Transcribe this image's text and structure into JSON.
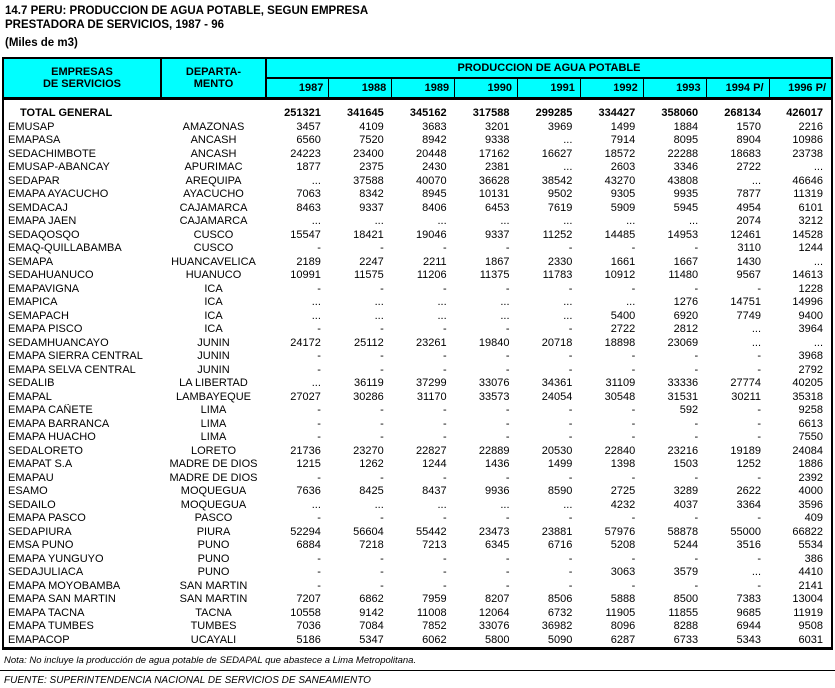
{
  "title": {
    "line1": "14.7 PERU: PRODUCCION DE AGUA POTABLE, SEGUN EMPRESA",
    "line2": "PRESTADORA DE SERVICIOS, 1987 - 96",
    "units": "(Miles de m3)"
  },
  "colors": {
    "header_bg": "#00FFFF",
    "text": "#000000"
  },
  "table": {
    "col_company_line1": "EMPRESAS",
    "col_company_line2": "DE SERVICIOS",
    "col_department_line1": "DEPARTA-",
    "col_department_line2": "MENTO",
    "group_header": "PRODUCCION DE AGUA POTABLE",
    "years": [
      "1987",
      "1988",
      "1989",
      "1990",
      "1991",
      "1992",
      "1993",
      "1994 P/",
      "1996 P/"
    ],
    "total_row": {
      "name": "TOTAL GENERAL",
      "dept": "",
      "values": [
        "251321",
        "341645",
        "345162",
        "317588",
        "299285",
        "334427",
        "358060",
        "268134",
        "426017"
      ]
    },
    "rows": [
      {
        "name": "EMUSAP",
        "dept": "AMAZONAS",
        "values": [
          "3457",
          "4109",
          "3683",
          "3201",
          "3969",
          "1499",
          "1884",
          "1570",
          "2216"
        ]
      },
      {
        "name": "EMAPASA",
        "dept": "ANCASH",
        "values": [
          "6560",
          "7520",
          "8942",
          "9338",
          "...",
          "7914",
          "8095",
          "8904",
          "10986"
        ]
      },
      {
        "name": "SEDACHIMBOTE",
        "dept": "ANCASH",
        "values": [
          "24223",
          "23400",
          "20448",
          "17162",
          "16627",
          "18572",
          "22288",
          "18683",
          "23738"
        ]
      },
      {
        "name": "EMUSAP-ABANCAY",
        "dept": "APURIMAC",
        "values": [
          "1877",
          "2375",
          "2430",
          "2381",
          "...",
          "2603",
          "3346",
          "2722",
          "..."
        ]
      },
      {
        "name": "SEDAPAR",
        "dept": "AREQUIPA",
        "values": [
          "...",
          "37588",
          "40070",
          "36628",
          "38542",
          "43270",
          "43808",
          "...",
          "46646"
        ]
      },
      {
        "name": "EMAPA AYACUCHO",
        "dept": "AYACUCHO",
        "values": [
          "7063",
          "8342",
          "8945",
          "10131",
          "9502",
          "9305",
          "9935",
          "7877",
          "11319"
        ]
      },
      {
        "name": "SEMDACAJ",
        "dept": "CAJAMARCA",
        "values": [
          "8463",
          "9337",
          "8406",
          "6453",
          "7619",
          "5909",
          "5945",
          "4954",
          "6101"
        ]
      },
      {
        "name": "EMAPA JAEN",
        "dept": "CAJAMARCA",
        "values": [
          "...",
          "...",
          "...",
          "...",
          "...",
          "...",
          "...",
          "2074",
          "3212"
        ]
      },
      {
        "name": "SEDAQOSQO",
        "dept": "CUSCO",
        "values": [
          "15547",
          "18421",
          "19046",
          "9337",
          "11252",
          "14485",
          "14953",
          "12461",
          "14528"
        ]
      },
      {
        "name": "EMAQ-QUILLABAMBA",
        "dept": "CUSCO",
        "values": [
          "-",
          "-",
          "-",
          "-",
          "-",
          "-",
          "-",
          "3110",
          "1244"
        ]
      },
      {
        "name": "SEMAPA",
        "dept": "HUANCAVELICA",
        "values": [
          "2189",
          "2247",
          "2211",
          "1867",
          "2330",
          "1661",
          "1667",
          "1430",
          "..."
        ]
      },
      {
        "name": "SEDAHUANUCO",
        "dept": "HUANUCO",
        "values": [
          "10991",
          "11575",
          "11206",
          "11375",
          "11783",
          "10912",
          "11480",
          "9567",
          "14613"
        ]
      },
      {
        "name": "EMAPAVIGNA",
        "dept": "ICA",
        "values": [
          "-",
          "-",
          "-",
          "-",
          "-",
          "-",
          "-",
          "-",
          "1228"
        ]
      },
      {
        "name": "EMAPICA",
        "dept": "ICA",
        "values": [
          "...",
          "...",
          "...",
          "...",
          "...",
          "...",
          "1276",
          "14751",
          "14996"
        ]
      },
      {
        "name": "SEMAPACH",
        "dept": "ICA",
        "values": [
          "...",
          "...",
          "...",
          "...",
          "...",
          "5400",
          "6920",
          "7749",
          "9400"
        ]
      },
      {
        "name": "EMAPA PISCO",
        "dept": "ICA",
        "values": [
          "-",
          "-",
          "-",
          "-",
          "-",
          "2722",
          "2812",
          "...",
          "3964"
        ]
      },
      {
        "name": "SEDAMHUANCAYO",
        "dept": "JUNIN",
        "values": [
          "24172",
          "25112",
          "23261",
          "19840",
          "20718",
          "18898",
          "23069",
          "...",
          "..."
        ]
      },
      {
        "name": "EMAPA SIERRA CENTRAL",
        "dept": "JUNIN",
        "values": [
          "-",
          "-",
          "-",
          "-",
          "-",
          "-",
          "-",
          "-",
          "3968"
        ]
      },
      {
        "name": "EMAPA SELVA CENTRAL",
        "dept": "JUNIN",
        "values": [
          "-",
          "-",
          "-",
          "-",
          "-",
          "-",
          "-",
          "-",
          "2792"
        ]
      },
      {
        "name": "SEDALIB",
        "dept": "LA LIBERTAD",
        "values": [
          "...",
          "36119",
          "37299",
          "33076",
          "34361",
          "31109",
          "33336",
          "27774",
          "40205"
        ]
      },
      {
        "name": "EMAPAL",
        "dept": "LAMBAYEQUE",
        "values": [
          "27027",
          "30286",
          "31170",
          "33573",
          "24054",
          "30548",
          "31531",
          "30211",
          "35318"
        ]
      },
      {
        "name": "EMAPA CAÑETE",
        "dept": "LIMA",
        "values": [
          "-",
          "-",
          "-",
          "-",
          "-",
          "-",
          "592",
          "-",
          "9258"
        ]
      },
      {
        "name": "EMAPA BARRANCA",
        "dept": "LIMA",
        "values": [
          "-",
          "-",
          "-",
          "-",
          "-",
          "-",
          "-",
          "-",
          "6613"
        ]
      },
      {
        "name": "EMAPA HUACHO",
        "dept": "LIMA",
        "values": [
          "-",
          "-",
          "-",
          "-",
          "-",
          "-",
          "-",
          "-",
          "7550"
        ]
      },
      {
        "name": "SEDALORETO",
        "dept": "LORETO",
        "values": [
          "21736",
          "23270",
          "22827",
          "22889",
          "20530",
          "22840",
          "23216",
          "19189",
          "24084"
        ]
      },
      {
        "name": "EMAPAT S.A",
        "dept": "MADRE DE DIOS",
        "values": [
          "1215",
          "1262",
          "1244",
          "1436",
          "1499",
          "1398",
          "1503",
          "1252",
          "1886"
        ]
      },
      {
        "name": "EMAPAU",
        "dept": "MADRE DE DIOS",
        "values": [
          "-",
          "-",
          "-",
          "-",
          "-",
          "-",
          "-",
          "-",
          "2392"
        ]
      },
      {
        "name": "ESAMO",
        "dept": "MOQUEGUA",
        "values": [
          "7636",
          "8425",
          "8437",
          "9936",
          "8590",
          "2725",
          "3289",
          "2622",
          "4000"
        ]
      },
      {
        "name": "SEDAILO",
        "dept": "MOQUEGUA",
        "values": [
          "...",
          "...",
          "...",
          "...",
          "...",
          "4232",
          "4037",
          "3364",
          "3596"
        ]
      },
      {
        "name": "EMAPA PASCO",
        "dept": "PASCO",
        "values": [
          "-",
          "-",
          "-",
          "-",
          "-",
          "-",
          "-",
          "-",
          "409"
        ]
      },
      {
        "name": "SEDAPIURA",
        "dept": "PIURA",
        "values": [
          "52294",
          "56604",
          "55442",
          "23473",
          "23881",
          "57976",
          "58878",
          "55000",
          "66822"
        ]
      },
      {
        "name": "EMSA PUNO",
        "dept": "PUNO",
        "values": [
          "6884",
          "7218",
          "7213",
          "6345",
          "6716",
          "5208",
          "5244",
          "3516",
          "5534"
        ]
      },
      {
        "name": "EMAPA YUNGUYO",
        "dept": "PUNO",
        "values": [
          "-",
          "-",
          "-",
          "-",
          "-",
          "-",
          "-",
          "-",
          "386"
        ]
      },
      {
        "name": "SEDAJULIACA",
        "dept": "PUNO",
        "values": [
          "-",
          "-",
          "-",
          "-",
          "-",
          "3063",
          "3579",
          "...",
          "4410"
        ]
      },
      {
        "name": "EMAPA MOYOBAMBA",
        "dept": "SAN MARTIN",
        "values": [
          "-",
          "-",
          "-",
          "-",
          "-",
          "-",
          "-",
          "-",
          "2141"
        ]
      },
      {
        "name": "EMAPA SAN MARTIN",
        "dept": "SAN MARTIN",
        "values": [
          "7207",
          "6862",
          "7959",
          "8207",
          "8506",
          "5888",
          "8500",
          "7383",
          "13004"
        ]
      },
      {
        "name": "EMAPA TACNA",
        "dept": "TACNA",
        "values": [
          "10558",
          "9142",
          "11008",
          "12064",
          "6732",
          "11905",
          "11855",
          "9685",
          "11919"
        ]
      },
      {
        "name": "EMAPA TUMBES",
        "dept": "TUMBES",
        "values": [
          "7036",
          "7084",
          "7852",
          "33076",
          "36982",
          "8096",
          "8288",
          "6944",
          "9508"
        ]
      },
      {
        "name": "EMAPACOP",
        "dept": "UCAYALI",
        "values": [
          "5186",
          "5347",
          "6062",
          "5800",
          "5090",
          "6287",
          "6733",
          "5343",
          "6031"
        ]
      }
    ]
  },
  "footer": {
    "note": "Nota: No incluye la producción de agua potable de SEDAPAL que abastece a Lima Metropolitana.",
    "source": "FUENTE: SUPERINTENDENCIA NACIONAL DE SERVICIOS DE SANEAMIENTO"
  }
}
